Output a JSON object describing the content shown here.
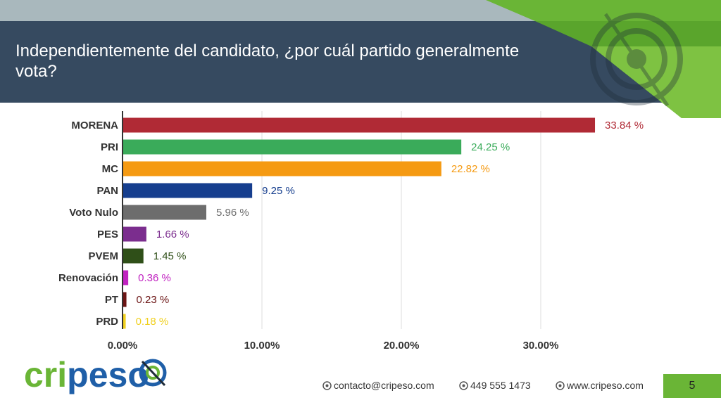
{
  "slide": {
    "title": "Independientemente del candidato, ¿por cuál partido generalmente vota?",
    "page_number": "5"
  },
  "footer": {
    "email": "contacto@cripeso.com",
    "phone": "449 555 1473",
    "website": "www.cripeso.com"
  },
  "logo": {
    "text": "cripeso"
  },
  "colors": {
    "header_bg": "#364a60",
    "accent_green": "#6ab536",
    "top_strip": "#a9b8bd"
  },
  "chart_data": {
    "type": "bar",
    "orientation": "horizontal",
    "categories": [
      "MORENA",
      "PRI",
      "MC",
      "PAN",
      "Voto Nulo",
      "PES",
      "PVEM",
      "Renovación",
      "PT",
      "PRD"
    ],
    "values": [
      33.84,
      24.25,
      22.82,
      9.25,
      5.96,
      1.66,
      1.45,
      0.36,
      0.23,
      0.18
    ],
    "value_labels": [
      "33.84 %",
      "24.25 %",
      "22.82 %",
      "9.25 %",
      "5.96 %",
      "1.66 %",
      "1.45 %",
      "0.36 %",
      "0.23 %",
      "0.18 %"
    ],
    "colors": [
      "#b02a35",
      "#3aab5a",
      "#f59a12",
      "#163e8e",
      "#6d6d6d",
      "#7b2d8e",
      "#2f4f18",
      "#c022c0",
      "#6b1414",
      "#f0d020"
    ],
    "xticks": [
      "0.00%",
      "10.00%",
      "20.00%",
      "30.00%"
    ],
    "xlim": [
      0,
      35
    ],
    "grid": true,
    "legend": "none"
  }
}
